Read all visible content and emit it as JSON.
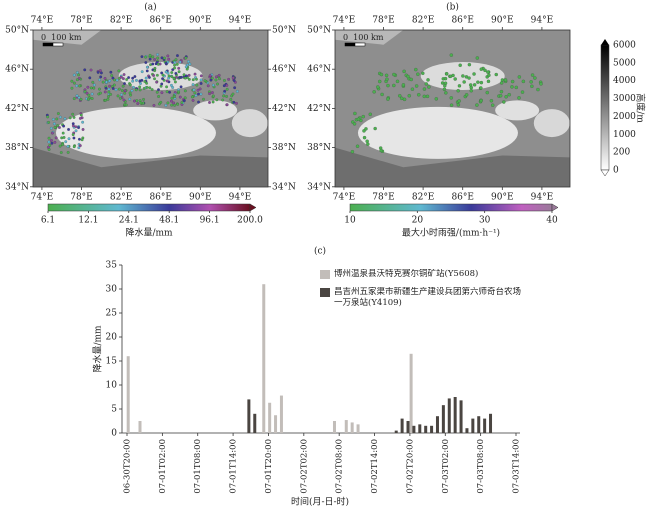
{
  "maps": [
    {
      "label": "(a)",
      "lon_labels": [
        "74°E",
        "78°E",
        "82°E",
        "86°E",
        "90°E",
        "94°E"
      ],
      "lat_labels": [
        "50°N",
        "46°N",
        "42°N",
        "38°N",
        "34°N"
      ],
      "scale": "0  100 km",
      "colorbar": {
        "ticks": [
          "6.1",
          "12.1",
          "24.1",
          "48.1",
          "96.1",
          "200.0"
        ],
        "title": "降水量/mm"
      }
    },
    {
      "label": "(b)",
      "lon_labels": [
        "74°E",
        "78°E",
        "82°E",
        "86°E",
        "90°E",
        "94°E"
      ],
      "lat_labels": [
        "50°N",
        "46°N",
        "42°N",
        "38°N",
        "34°N"
      ],
      "scale": "0  100 km",
      "colorbar": {
        "ticks": [
          "10",
          "20",
          "30",
          "40"
        ],
        "title": "最大小时雨强/(mm·h⁻¹)"
      },
      "elevation_bar": {
        "ticks": [
          "0",
          "200",
          "1000",
          "2000",
          "3000",
          "4000",
          "5000",
          "6000"
        ],
        "title": "高度/m"
      }
    }
  ],
  "chart_data": {
    "type": "bar",
    "title": "(c)",
    "x_label": "时间(月-日-时)",
    "y_label": "降水量/mm",
    "categories": [
      "06-30T20:00",
      null,
      null,
      null,
      null,
      null,
      "07-01T02:00",
      null,
      null,
      null,
      null,
      null,
      "07-01T08:00",
      null,
      null,
      null,
      null,
      null,
      "07-01T14:00",
      null,
      null,
      null,
      null,
      null,
      "07-01T20:00",
      null,
      null,
      null,
      null,
      null,
      "07-02T02:00",
      null,
      null,
      null,
      null,
      null,
      "07-02T08:00",
      null,
      null,
      null,
      null,
      null,
      "07-02T14:00",
      null,
      null,
      null,
      null,
      null,
      "07-02T20:00",
      null,
      null,
      null,
      null,
      null,
      "07-03T02:00",
      null,
      null,
      null,
      null,
      null,
      "07-03T08:00",
      null,
      null,
      null,
      null,
      null,
      "07-03T14:00"
    ],
    "series": [
      {
        "name": "博州温泉县沃特克赛尔铜矿站(Y5608)",
        "color": "#c2bdb9",
        "values": [
          16,
          0,
          2.5,
          0,
          0,
          0,
          0,
          0,
          0,
          0,
          0,
          0,
          0,
          0,
          0,
          0,
          0,
          0,
          0,
          0,
          0,
          0,
          0,
          31,
          6.3,
          3.7,
          7.8,
          0,
          0,
          0,
          0,
          0,
          0,
          0,
          0,
          2.5,
          0,
          2.7,
          2.2,
          1.8,
          0,
          0,
          0,
          0,
          0,
          0,
          0,
          0,
          16.5,
          0,
          0,
          0,
          0,
          0,
          0,
          0,
          0,
          0,
          0,
          0,
          0,
          0,
          0,
          0,
          0,
          0,
          0
        ]
      },
      {
        "name": "昌吉州五家渠市新疆生产建设兵团第六师奇台农场一万泉站(Y4109)",
        "color": "#4a4541",
        "values": [
          0,
          0,
          0,
          0,
          0,
          0,
          0,
          0,
          0,
          0,
          0,
          0,
          0,
          0,
          0,
          0,
          0,
          0,
          0,
          0,
          0,
          7,
          4,
          0,
          0,
          0,
          0,
          0,
          0,
          0,
          0,
          0,
          0,
          0,
          0,
          0,
          0,
          0,
          0,
          0,
          0,
          0,
          0,
          0,
          0,
          0,
          0.5,
          3,
          2.5,
          1.5,
          1.8,
          1.5,
          1.5,
          3.5,
          5.8,
          7.2,
          7.5,
          6.8,
          1,
          3,
          3.5,
          3,
          4,
          0,
          0,
          0,
          0
        ]
      }
    ],
    "ylim": [
      0,
      35
    ],
    "yticks": [
      0,
      5,
      10,
      15,
      20,
      25,
      30,
      35
    ],
    "legend": "upper right"
  }
}
